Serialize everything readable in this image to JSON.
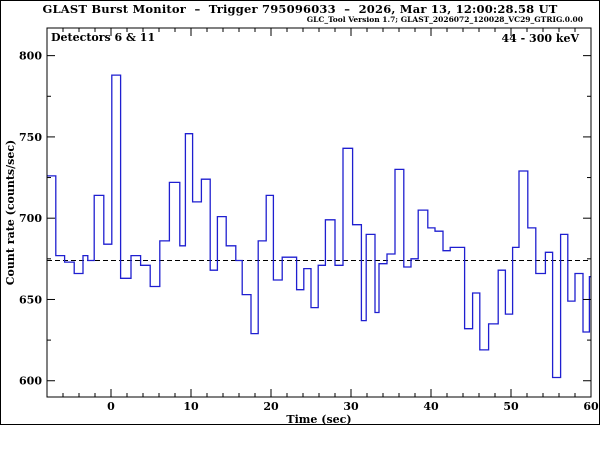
{
  "window": {
    "background": "#ffffff",
    "frame_color": "#000000"
  },
  "header": {
    "title": "GLAST Burst Monitor  –  Trigger 795096033  –  2026, Mar 13, 12:00:28.58 UT",
    "subtitle": "GLC_Tool Version 1.7; GLAST_2026072_120028_VC29_GTRIG.0.00"
  },
  "plot_annotations": {
    "detectors": "Detectors 6 & 11",
    "energy_range": "44 - 300 keV"
  },
  "chart_data": {
    "type": "line",
    "subtype": "step-histogram light curve",
    "title": "GLAST Burst Monitor  –  Trigger 795096033  –  2026, Mar 13, 12:00:28.58 UT",
    "xlabel": "Time (sec)",
    "ylabel": "Count rate (counts/sec)",
    "xlim": [
      -8,
      60
    ],
    "ylim": [
      590,
      817
    ],
    "xticks": [
      0,
      10,
      20,
      30,
      40,
      50,
      60
    ],
    "x_minor_step": 2,
    "yticks": [
      600,
      650,
      700,
      750,
      800
    ],
    "y_minor_step": 25,
    "grid": false,
    "background_level_dashed_line": 674,
    "line_color": "#1f1fd0",
    "axis_color": "#000000",
    "x_end": 60,
    "steps_t_value": [
      [
        -8.0,
        726
      ],
      [
        -6.9,
        677
      ],
      [
        -5.8,
        673
      ],
      [
        -4.6,
        666
      ],
      [
        -3.5,
        677
      ],
      [
        -2.9,
        674
      ],
      [
        -2.1,
        714
      ],
      [
        -0.9,
        684
      ],
      [
        0.1,
        788
      ],
      [
        1.2,
        663
      ],
      [
        2.5,
        677
      ],
      [
        3.7,
        671
      ],
      [
        4.9,
        658
      ],
      [
        6.1,
        686
      ],
      [
        7.3,
        722
      ],
      [
        8.6,
        683
      ],
      [
        9.3,
        752
      ],
      [
        10.2,
        710
      ],
      [
        11.3,
        724
      ],
      [
        12.4,
        668
      ],
      [
        13.3,
        701
      ],
      [
        14.4,
        683
      ],
      [
        15.6,
        674
      ],
      [
        16.4,
        653
      ],
      [
        17.5,
        629
      ],
      [
        18.4,
        686
      ],
      [
        19.4,
        714
      ],
      [
        20.3,
        662
      ],
      [
        21.4,
        676
      ],
      [
        23.2,
        656
      ],
      [
        24.1,
        669
      ],
      [
        25.0,
        645
      ],
      [
        25.9,
        671
      ],
      [
        26.8,
        699
      ],
      [
        28.0,
        671
      ],
      [
        29.0,
        743
      ],
      [
        30.2,
        696
      ],
      [
        31.3,
        637
      ],
      [
        31.9,
        690
      ],
      [
        33.0,
        642
      ],
      [
        33.5,
        672
      ],
      [
        34.5,
        678
      ],
      [
        35.5,
        730
      ],
      [
        36.6,
        670
      ],
      [
        37.5,
        675
      ],
      [
        38.4,
        705
      ],
      [
        39.6,
        694
      ],
      [
        40.5,
        692
      ],
      [
        41.5,
        680
      ],
      [
        42.4,
        682
      ],
      [
        44.2,
        632
      ],
      [
        45.2,
        654
      ],
      [
        46.1,
        619
      ],
      [
        47.2,
        635
      ],
      [
        48.4,
        668
      ],
      [
        49.3,
        641
      ],
      [
        50.2,
        682
      ],
      [
        51.0,
        729
      ],
      [
        52.1,
        694
      ],
      [
        53.1,
        666
      ],
      [
        54.3,
        679
      ],
      [
        55.2,
        602
      ],
      [
        56.2,
        690
      ],
      [
        57.1,
        649
      ],
      [
        58.0,
        666
      ],
      [
        59.0,
        630
      ],
      [
        59.8,
        664
      ]
    ]
  }
}
